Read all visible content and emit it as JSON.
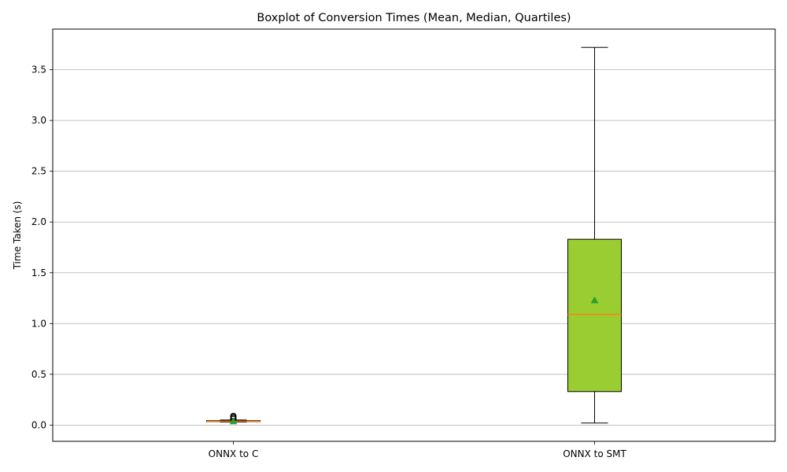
{
  "chart_data": {
    "type": "boxplot",
    "title": "Boxplot of Conversion Times (Mean, Median, Quartiles)",
    "xlabel": "",
    "ylabel": "Time Taken (s)",
    "ylim": [
      -0.16,
      3.9
    ],
    "yticks": [
      "0.0",
      "0.5",
      "1.0",
      "1.5",
      "2.0",
      "2.5",
      "3.0",
      "3.5"
    ],
    "grid": "horizontal",
    "categories": [
      "ONNX to C",
      "ONNX to SMT"
    ],
    "boxes": [
      {
        "category": "ONNX to C",
        "whisker_low": 0.03,
        "q1": 0.034,
        "median": 0.038,
        "q3": 0.044,
        "whisker_high": 0.05,
        "mean": 0.038,
        "outliers": [
          0.06,
          0.07,
          0.08,
          0.09
        ]
      },
      {
        "category": "ONNX to SMT",
        "whisker_low": 0.02,
        "q1": 0.33,
        "median": 1.09,
        "q3": 1.83,
        "whisker_high": 3.72,
        "mean": 1.23,
        "outliers": []
      }
    ],
    "colors": {
      "box_c": "#1f77b4",
      "box_smt": "#9acd32",
      "median": "#ff7f0e",
      "mean": "#2ca02c",
      "grid": "#b0b0b0",
      "edge": "#000000"
    }
  }
}
